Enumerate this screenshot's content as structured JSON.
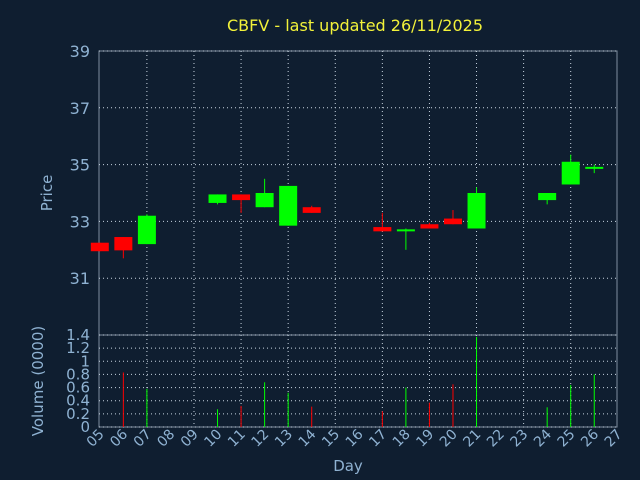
{
  "chart_data": [
    {
      "type": "candlestick",
      "title": "CBFV - last updated 26/11/2025",
      "ylabel": "Price",
      "ylim": [
        29,
        39
      ],
      "yticks": [
        "31",
        "33",
        "35",
        "37",
        "39"
      ],
      "up_color": "#00ff00",
      "down_color": "#ff0000",
      "candles": [
        {
          "day": 5,
          "open": 32.25,
          "close": 31.95,
          "high": 32.25,
          "low": 31.95
        },
        {
          "day": 6,
          "open": 32.45,
          "close": 31.98,
          "high": 32.45,
          "low": 31.7
        },
        {
          "day": 7,
          "open": 32.2,
          "close": 33.2,
          "high": 33.25,
          "low": 32.2
        },
        {
          "day": 10,
          "open": 33.65,
          "close": 33.95,
          "high": 33.95,
          "low": 33.6
        },
        {
          "day": 11,
          "open": 33.95,
          "close": 33.75,
          "high": 33.95,
          "low": 33.3
        },
        {
          "day": 12,
          "open": 33.5,
          "close": 34.0,
          "high": 34.5,
          "low": 33.5
        },
        {
          "day": 13,
          "open": 32.85,
          "close": 34.25,
          "high": 34.25,
          "low": 32.85
        },
        {
          "day": 14,
          "open": 33.5,
          "close": 33.3,
          "high": 33.55,
          "low": 33.3
        },
        {
          "day": 17,
          "open": 32.8,
          "close": 32.65,
          "high": 33.3,
          "low": 32.65
        },
        {
          "day": 18,
          "open": 32.7,
          "close": 32.72,
          "high": 32.75,
          "low": 32.0
        },
        {
          "day": 19,
          "open": 32.9,
          "close": 32.75,
          "high": 32.95,
          "low": 32.75
        },
        {
          "day": 20,
          "open": 33.1,
          "close": 32.9,
          "high": 33.4,
          "low": 32.9
        },
        {
          "day": 21,
          "open": 32.75,
          "close": 34.0,
          "high": 34.2,
          "low": 32.75
        },
        {
          "day": 24,
          "open": 33.75,
          "close": 34.0,
          "high": 34.0,
          "low": 33.6
        },
        {
          "day": 25,
          "open": 34.3,
          "close": 35.1,
          "high": 35.35,
          "low": 34.3
        },
        {
          "day": 26,
          "open": 34.9,
          "close": 34.92,
          "high": 35.0,
          "low": 34.7
        }
      ]
    },
    {
      "type": "bar",
      "ylabel": "Volume (0000)",
      "ylim": [
        0,
        1.4
      ],
      "yticks": [
        "0",
        "0.2",
        "0.4",
        "0.6",
        "0.8",
        "1",
        "1.2",
        "1.4"
      ],
      "xlabel": "Day",
      "x_days": [
        "05",
        "06",
        "07",
        "08",
        "09",
        "10",
        "11",
        "12",
        "13",
        "14",
        "15",
        "16",
        "17",
        "18",
        "19",
        "20",
        "21",
        "22",
        "23",
        "24",
        "25",
        "26",
        "27"
      ],
      "bars": [
        {
          "day": 6,
          "value": 0.83,
          "dir": "down"
        },
        {
          "day": 7,
          "value": 0.58,
          "dir": "up"
        },
        {
          "day": 10,
          "value": 0.27,
          "dir": "up"
        },
        {
          "day": 11,
          "value": 0.32,
          "dir": "down"
        },
        {
          "day": 12,
          "value": 0.68,
          "dir": "up"
        },
        {
          "day": 13,
          "value": 0.52,
          "dir": "up"
        },
        {
          "day": 14,
          "value": 0.31,
          "dir": "down"
        },
        {
          "day": 17,
          "value": 0.24,
          "dir": "down"
        },
        {
          "day": 18,
          "value": 0.6,
          "dir": "up"
        },
        {
          "day": 19,
          "value": 0.37,
          "dir": "down"
        },
        {
          "day": 20,
          "value": 0.65,
          "dir": "down"
        },
        {
          "day": 21,
          "value": 1.37,
          "dir": "up"
        },
        {
          "day": 24,
          "value": 0.3,
          "dir": "up"
        },
        {
          "day": 25,
          "value": 0.64,
          "dir": "up"
        },
        {
          "day": 26,
          "value": 0.8,
          "dir": "up"
        }
      ]
    }
  ]
}
